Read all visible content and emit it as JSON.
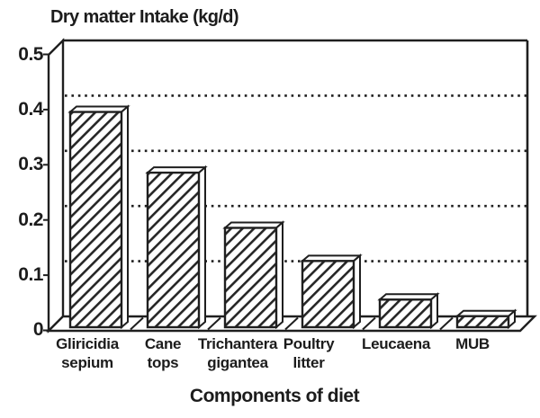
{
  "chart_data": {
    "type": "bar",
    "title": "Dry matter Intake (kg/d)",
    "xlabel": "Components of diet",
    "ylabel": "Dry matter intake (kg/d)",
    "categories": [
      "Gliricidia sepium",
      "Cane tops",
      "Trichantera gigantea",
      "Poultry litter",
      "Leucaena",
      "MUB"
    ],
    "category_display_labels": [
      "Gliricidia\nsepium",
      "Cane\ntops",
      "Trichantera\ngigantea",
      "Poultry\nlitter",
      "Leucaena",
      "MUB"
    ],
    "values": [
      0.39,
      0.28,
      0.18,
      0.12,
      0.05,
      0.02
    ],
    "ylim": [
      0,
      0.5
    ],
    "yticks": [
      0,
      0.1,
      0.2,
      0.3,
      0.4,
      0.5
    ],
    "ytick_labels": [
      "0",
      "0.1",
      "0.2",
      "0.3",
      "0.4",
      "0.5"
    ],
    "grid": "horizontal dotted gridlines at 0.1 intervals",
    "legend": "none",
    "style": "monochrome scanned figure, 3D block bars with diagonal hatching",
    "bar_fill": "diagonal-hatch",
    "ink_color": "#1f1f1f",
    "background": "#ffffff"
  }
}
